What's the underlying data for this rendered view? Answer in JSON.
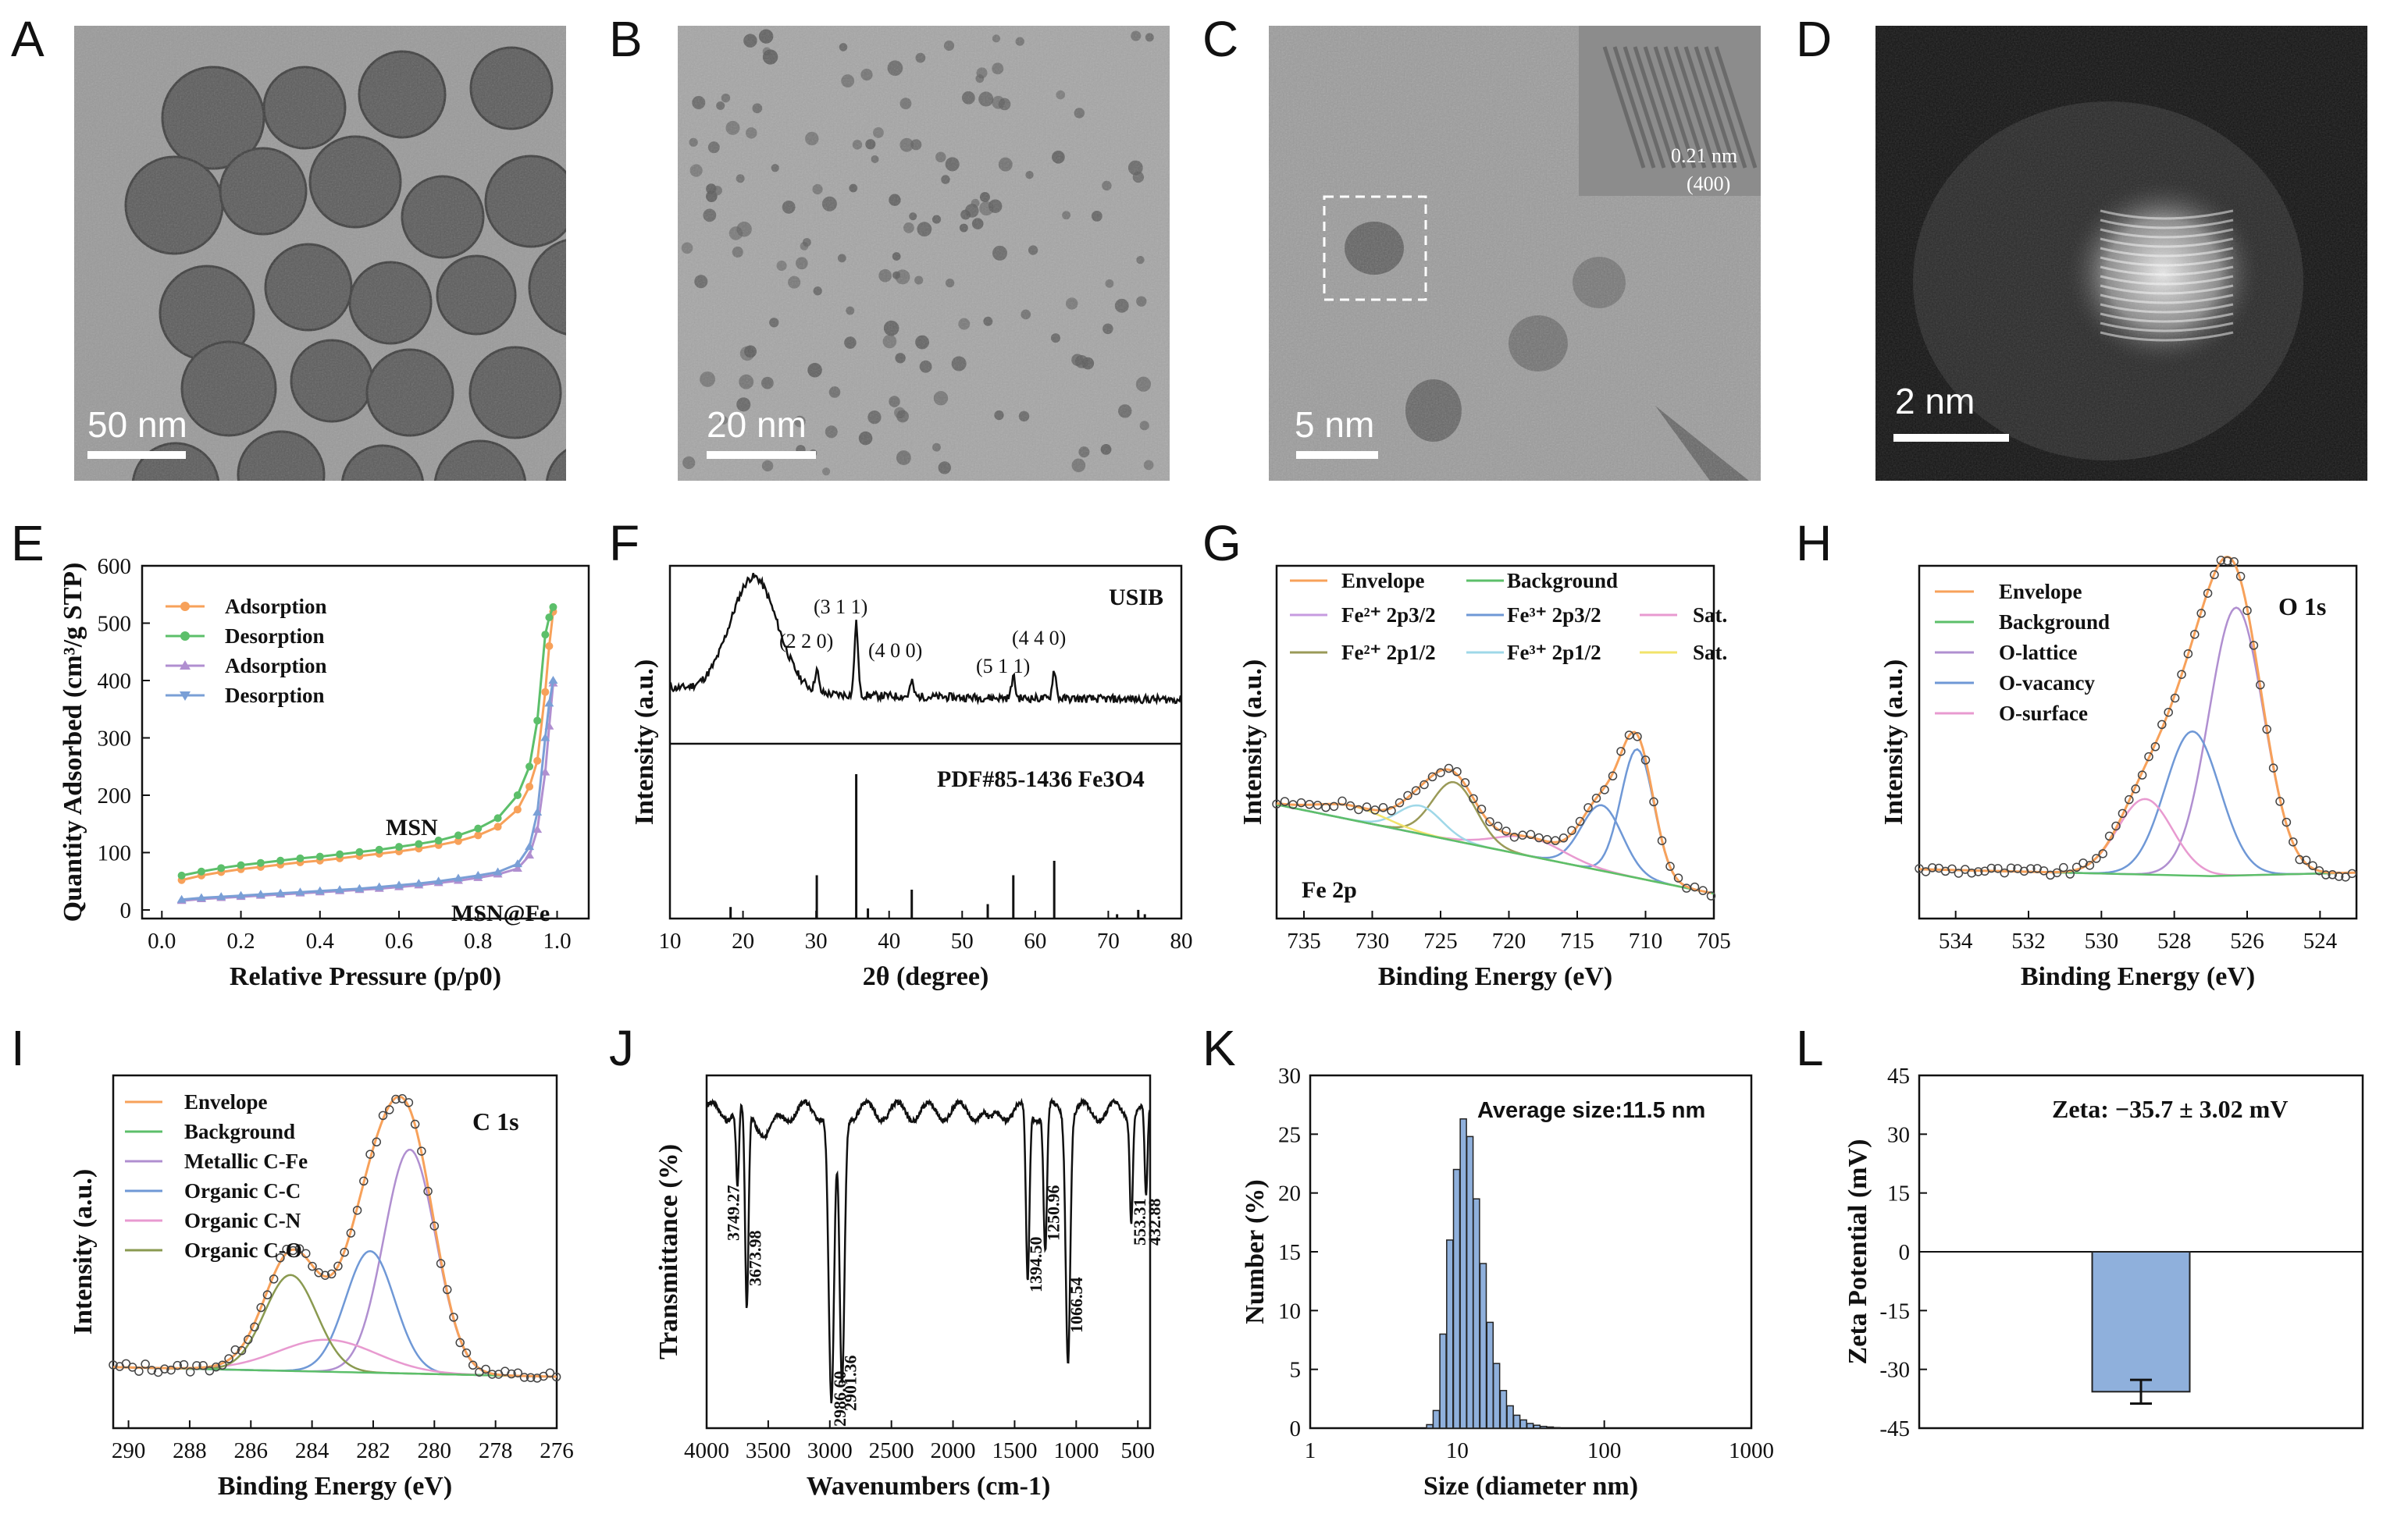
{
  "panel_labels": [
    "A",
    "B",
    "C",
    "D",
    "E",
    "F",
    "G",
    "H",
    "I",
    "J",
    "K",
    "L"
  ],
  "micrographs": {
    "A": {
      "scale": "50 nm"
    },
    "B": {
      "scale": "20 nm"
    },
    "C": {
      "scale": "5 nm",
      "inset_d": "0.21 nm",
      "inset_plane": "(400)"
    },
    "D": {
      "scale": "2 nm"
    }
  },
  "chart_data": [
    {
      "panel": "E",
      "type": "line",
      "xlabel": "Relative Pressure (p/p0)",
      "ylabel": "Quantity Adsorbed (cm³/g STP)",
      "xlim": [
        -0.05,
        1.08
      ],
      "ylim": [
        -15,
        600
      ],
      "xticks": [
        "0.0",
        "0.2",
        "0.4",
        "0.6",
        "0.8",
        "1.0"
      ],
      "yticks": [
        "0",
        "100",
        "200",
        "300",
        "400",
        "500",
        "600"
      ],
      "x": [
        0.05,
        0.1,
        0.15,
        0.2,
        0.25,
        0.3,
        0.35,
        0.4,
        0.45,
        0.5,
        0.55,
        0.6,
        0.65,
        0.7,
        0.75,
        0.8,
        0.85,
        0.9,
        0.93,
        0.95,
        0.97,
        0.98,
        0.99
      ],
      "series": [
        {
          "name": "Adsorption",
          "group": "MSN",
          "color": "#f7a15a",
          "values": [
            52,
            60,
            66,
            71,
            75,
            79,
            83,
            86,
            90,
            94,
            98,
            102,
            107,
            113,
            120,
            130,
            145,
            175,
            215,
            260,
            380,
            460,
            520
          ]
        },
        {
          "name": "Desorption",
          "group": "MSN",
          "color": "#5cbf6a",
          "values": [
            60,
            67,
            73,
            78,
            82,
            86,
            90,
            93,
            97,
            101,
            105,
            110,
            115,
            121,
            130,
            142,
            160,
            200,
            250,
            330,
            480,
            510,
            528
          ]
        },
        {
          "name": "Adsorption",
          "group": "MSN@Fe",
          "color": "#b08fd0",
          "values": [
            16,
            19,
            21,
            23,
            25,
            27,
            29,
            31,
            33,
            35,
            37,
            40,
            43,
            47,
            51,
            56,
            62,
            72,
            95,
            140,
            240,
            320,
            395
          ]
        },
        {
          "name": "Desorption",
          "group": "MSN@Fe",
          "color": "#7a9fd6",
          "values": [
            18,
            21,
            23,
            25,
            27,
            29,
            31,
            33,
            35,
            37,
            40,
            43,
            46,
            50,
            55,
            60,
            66,
            80,
            110,
            170,
            300,
            360,
            400
          ]
        }
      ],
      "annotations": [
        "MSN",
        "MSN@Fe"
      ]
    },
    {
      "panel": "F",
      "type": "line",
      "xlabel": "2θ (degree)",
      "ylabel": "Intensity (a.u.)",
      "xlim": [
        10,
        80
      ],
      "xticks": [
        "10",
        "20",
        "30",
        "40",
        "50",
        "60",
        "70",
        "80"
      ],
      "sample_label": "USIB",
      "reference_label": "PDF#85-1436 Fe3O4",
      "peaks": [
        {
          "two_theta": 30.1,
          "label": "(2 2 0)",
          "rel": 0.3
        },
        {
          "two_theta": 35.5,
          "label": "(3 1 1)",
          "rel": 1.0
        },
        {
          "two_theta": 43.1,
          "label": "(4 0 0)",
          "rel": 0.2
        },
        {
          "two_theta": 57.0,
          "label": "(5 1 1)",
          "rel": 0.3
        },
        {
          "two_theta": 62.6,
          "label": "(4 4 0)",
          "rel": 0.4
        }
      ],
      "reference_lines": [
        [
          18.3,
          0.08
        ],
        [
          30.1,
          0.3
        ],
        [
          35.5,
          1.0
        ],
        [
          37.1,
          0.07
        ],
        [
          43.1,
          0.2
        ],
        [
          53.5,
          0.1
        ],
        [
          57.0,
          0.3
        ],
        [
          62.6,
          0.4
        ],
        [
          71.2,
          0.03
        ],
        [
          74.1,
          0.06
        ],
        [
          75.0,
          0.03
        ]
      ]
    },
    {
      "panel": "G",
      "type": "line",
      "xlabel": "Binding Energy (eV)",
      "ylabel": "Intensity (a.u.)",
      "xlim": [
        737,
        705
      ],
      "xticks": [
        "735",
        "730",
        "725",
        "720",
        "715",
        "710",
        "705"
      ],
      "region": "Fe 2p",
      "legend": [
        "Envelope",
        "Background",
        "Fe²⁺ 2p3/2",
        "Fe³⁺ 2p3/2",
        "Sat.",
        "Fe²⁺ 2p1/2",
        "Fe³⁺ 2p1/2",
        "Sat."
      ]
    },
    {
      "panel": "H",
      "type": "line",
      "xlabel": "Binding Energy (eV)",
      "ylabel": "Intensity (a.u.)",
      "xlim": [
        535,
        523
      ],
      "xticks": [
        "534",
        "532",
        "530",
        "528",
        "526",
        "524"
      ],
      "region": "O 1s",
      "legend": [
        "Envelope",
        "Background",
        "O-lattice",
        "O-vacancy",
        "O-surface"
      ],
      "components": [
        {
          "name": "O-lattice",
          "center": 526.3,
          "height": 0.78
        },
        {
          "name": "O-vacancy",
          "center": 527.5,
          "height": 0.42
        },
        {
          "name": "O-surface",
          "center": 528.8,
          "height": 0.22
        }
      ]
    },
    {
      "panel": "I",
      "type": "line",
      "xlabel": "Binding Energy (eV)",
      "ylabel": "Intensity (a.u.)",
      "xlim": [
        290.5,
        276
      ],
      "xticks": [
        "290",
        "288",
        "286",
        "284",
        "282",
        "280",
        "278",
        "276"
      ],
      "region": "C 1s",
      "legend": [
        "Envelope",
        "Background",
        "Metallic C-Fe",
        "Organic C-C",
        "Organic C-N",
        "Organic C-O"
      ],
      "components": [
        {
          "name": "Metallic C-Fe",
          "center": 280.8,
          "height": 0.7
        },
        {
          "name": "Organic C-C",
          "center": 282.1,
          "height": 0.38
        },
        {
          "name": "Organic C-N",
          "center": 283.5,
          "height": 0.1
        },
        {
          "name": "Organic C-O",
          "center": 284.7,
          "height": 0.3
        }
      ]
    },
    {
      "panel": "J",
      "type": "line",
      "xlabel": "Wavenumbers (cm-1)",
      "ylabel": "Transmittance (%)",
      "xlim": [
        4000,
        400
      ],
      "xticks": [
        "4000",
        "3500",
        "3000",
        "2500",
        "2000",
        "1500",
        "1000",
        "500"
      ],
      "bands": [
        "3749.27",
        "3673.98",
        "2986.60",
        "2901.36",
        "1394.50",
        "1250.96",
        "1066.54",
        "553.31",
        "432.88"
      ]
    },
    {
      "panel": "K",
      "type": "bar",
      "xlabel": "Size (diameter nm)",
      "ylabel": "Number (%)",
      "xscale": "log",
      "xlim": [
        1,
        1000
      ],
      "ylim": [
        0,
        30
      ],
      "xticks": [
        "1",
        "10",
        "100",
        "1000"
      ],
      "yticks": [
        "0",
        "5",
        "10",
        "15",
        "20",
        "25",
        "30"
      ],
      "annotation": "Average size:11.5 nm",
      "sizes": [
        6.5,
        7.2,
        8.0,
        8.9,
        9.9,
        11.0,
        12.2,
        13.5,
        15.0,
        16.7,
        18.5,
        20.6,
        22.9,
        25.4,
        28.2,
        31.3,
        34.8,
        38.6,
        42.9,
        47.6
      ],
      "values": [
        0.3,
        1.5,
        8.0,
        16.0,
        22.0,
        26.3,
        24.8,
        19.5,
        14.0,
        9.0,
        5.5,
        3.2,
        1.9,
        1.1,
        0.7,
        0.4,
        0.25,
        0.15,
        0.1,
        0.05
      ]
    },
    {
      "panel": "L",
      "type": "bar",
      "xlabel": "",
      "ylabel": "Zeta Potential (mV)",
      "ylim": [
        -45,
        45
      ],
      "yticks": [
        "45",
        "30",
        "15",
        "0",
        "-15",
        "-30",
        "-45"
      ],
      "annotation": "Zeta: −35.7 ± 3.02 mV",
      "value": -35.7,
      "error": 3.02,
      "color": "#8fb0dc"
    }
  ]
}
